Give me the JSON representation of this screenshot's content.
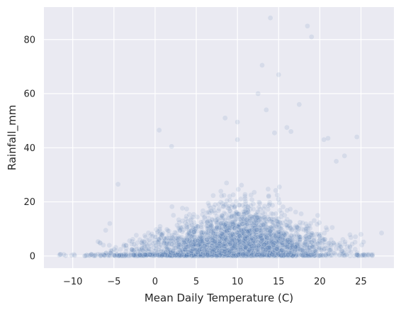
{
  "chart_data": {
    "type": "scatter",
    "title": "",
    "xlabel": "Mean Daily Temperature (C)",
    "ylabel": "Rainfall_mm",
    "xlim": [
      -13.5,
      29
    ],
    "ylim": [
      -4.5,
      92
    ],
    "xticks": [
      -10,
      -5,
      0,
      5,
      10,
      15,
      20,
      25
    ],
    "yticks": [
      0,
      20,
      40,
      60,
      80
    ],
    "xtick_labels": [
      "−10",
      "−5",
      "0",
      "5",
      "10",
      "15",
      "20",
      "25"
    ],
    "ytick_labels": [
      "0",
      "20",
      "40",
      "60",
      "80"
    ],
    "grid": true,
    "legend": false,
    "point_color": "#4c72b0",
    "point_alpha": 0.12,
    "background": "#eaeaf2",
    "grid_color": "#ffffff",
    "series": [
      {
        "values": [
          {
            "x": 14,
            "y": 88
          },
          {
            "x": 18.5,
            "y": 85
          },
          {
            "x": 19,
            "y": 81
          },
          {
            "x": 13,
            "y": 70.5
          },
          {
            "x": 15,
            "y": 67
          },
          {
            "x": 12.5,
            "y": 60
          },
          {
            "x": 17.5,
            "y": 56
          },
          {
            "x": 13.5,
            "y": 54
          },
          {
            "x": 8.5,
            "y": 51
          },
          {
            "x": 10,
            "y": 49.5
          },
          {
            "x": 0.5,
            "y": 46.5
          },
          {
            "x": 16,
            "y": 47.5
          },
          {
            "x": 16.5,
            "y": 46
          },
          {
            "x": 14.5,
            "y": 45.5
          },
          {
            "x": 24.5,
            "y": 44
          },
          {
            "x": 21,
            "y": 43.5
          },
          {
            "x": 20.5,
            "y": 43
          },
          {
            "x": 10,
            "y": 43
          },
          {
            "x": 2,
            "y": 40.5
          },
          {
            "x": 27.5,
            "y": 8.5
          },
          {
            "x": -4.5,
            "y": 26.5
          },
          {
            "x": -5.5,
            "y": 12
          },
          {
            "x": -6,
            "y": 9.5
          },
          {
            "x": 25,
            "y": 8
          },
          {
            "x": 22,
            "y": 35
          },
          {
            "x": 23,
            "y": 37
          }
        ]
      }
    ]
  }
}
